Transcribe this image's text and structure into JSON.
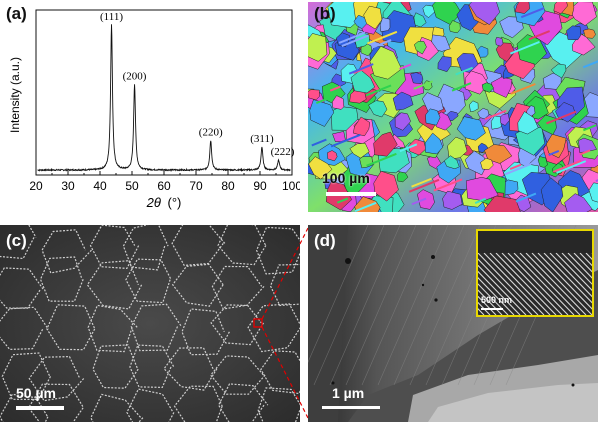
{
  "panels": {
    "a": {
      "label": "(a)"
    },
    "b": {
      "label": "(b)",
      "scale_bar": "100 µm"
    },
    "c": {
      "label": "(c)",
      "scale_bar": "50 µm"
    },
    "d": {
      "label": "(d)",
      "scale_bar": "1 µm",
      "inset_scale_bar": "500 nm"
    }
  },
  "colors": {
    "inset_border": "#e8d800",
    "zoom_lines": "#e00000",
    "trace": "#111111"
  },
  "chart_data": {
    "type": "line",
    "title": "",
    "xlabel": "2θ (°)",
    "xlabel_parts": {
      "var": "2θ",
      "unit": "(°)"
    },
    "ylabel": "Intensity (a.u.)",
    "xlim": [
      20,
      100
    ],
    "xticks": [
      20,
      30,
      40,
      50,
      60,
      70,
      80,
      90,
      100
    ],
    "ylim": [
      0,
      100
    ],
    "grid": false,
    "peaks": [
      {
        "label": "(111)",
        "x": 43.6,
        "height": 88
      },
      {
        "label": "(200)",
        "x": 50.8,
        "height": 52
      },
      {
        "label": "(220)",
        "x": 74.6,
        "height": 18
      },
      {
        "label": "(311)",
        "x": 90.6,
        "height": 14
      },
      {
        "label": "(222)",
        "x": 95.8,
        "height": 6
      }
    ],
    "baseline": 3
  }
}
